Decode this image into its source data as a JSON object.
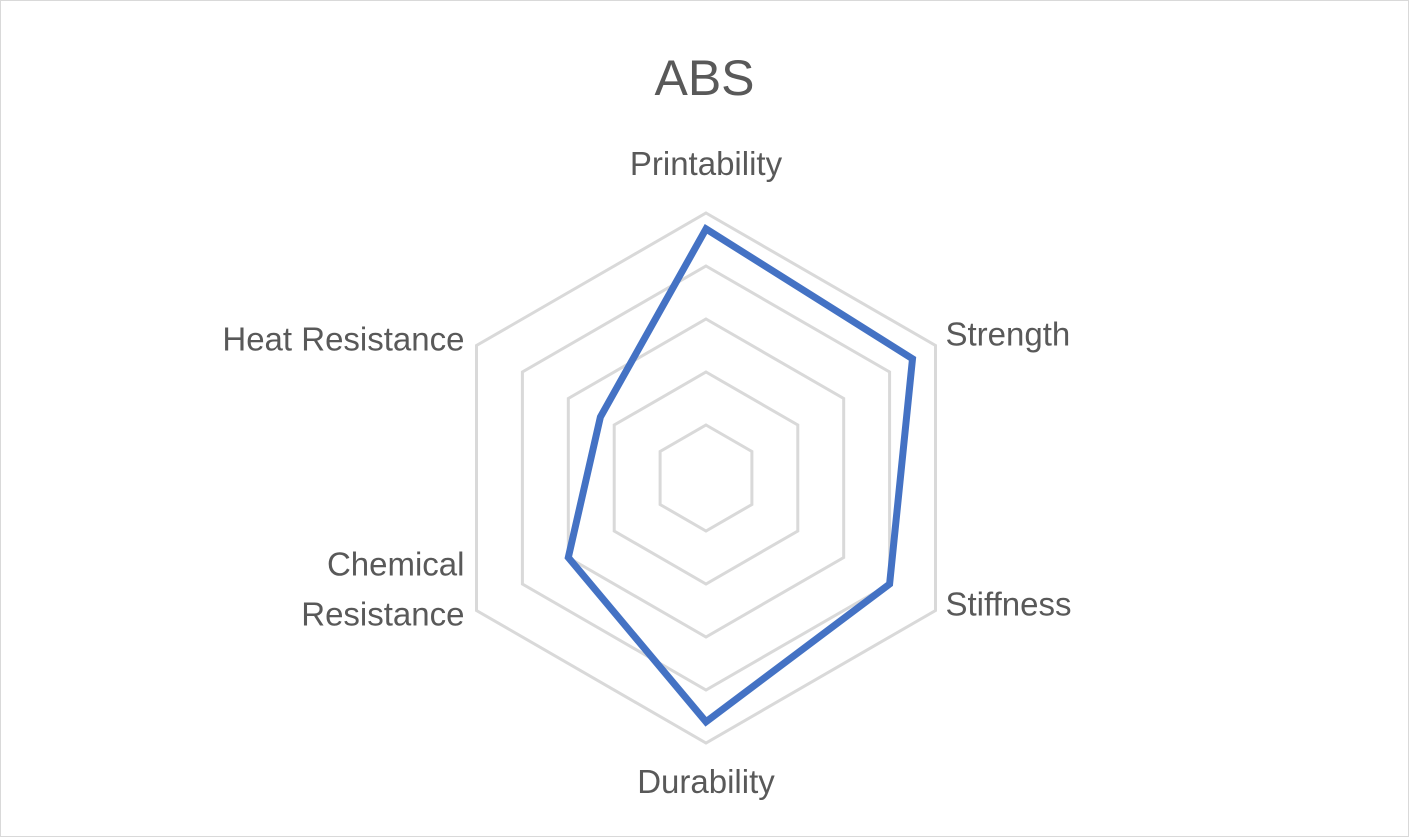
{
  "chart_data": {
    "type": "radar",
    "title": "ABS",
    "categories": [
      "Printability",
      "Strength",
      "Stiffness",
      "Durability",
      "Chemical Resistance",
      "Heat Resistance"
    ],
    "label_lines": [
      [
        "Printability"
      ],
      [
        "Strength"
      ],
      [
        "Stiffness"
      ],
      [
        "Durability"
      ],
      [
        "Chemical",
        "Resistance"
      ],
      [
        "Heat Resistance"
      ]
    ],
    "series": [
      {
        "values": [
          4.7,
          4.5,
          4.0,
          4.6,
          3.0,
          2.3
        ]
      }
    ],
    "rlim": [
      0,
      5
    ],
    "grid_rings": 5,
    "legend": "none",
    "colors": {
      "series": "#4472c4",
      "grid": "#d9d9d9",
      "text": "#595959"
    }
  }
}
